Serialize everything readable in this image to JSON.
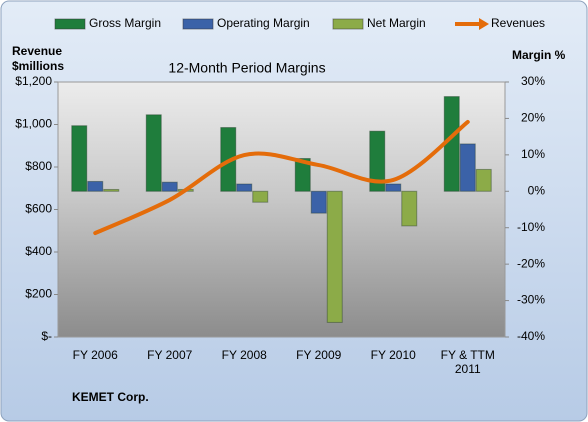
{
  "chart_data": {
    "type": "bar_line",
    "title": "12-Month Period Margins",
    "ylabel": [
      "Revenue",
      "$millions"
    ],
    "y2label": "Margin %",
    "footer": "KEMET Corp.",
    "categories": [
      "FY 2006",
      "FY 2007",
      "FY 2008",
      "FY 2009",
      "FY 2010",
      "FY & TTM 2011"
    ],
    "series": [
      {
        "name": "Gross Margin",
        "color": "#1f7d3c",
        "type": "bar",
        "axis": "y2",
        "values": [
          18,
          21,
          17.5,
          9,
          16.5,
          26
        ]
      },
      {
        "name": "Operating Margin",
        "color": "#3b62a8",
        "type": "bar",
        "axis": "y2",
        "values": [
          2.7,
          2.5,
          2,
          -6,
          2,
          13
        ]
      },
      {
        "name": "Net Margin",
        "color": "#8cab48",
        "type": "bar",
        "axis": "y2",
        "values": [
          0.5,
          0.5,
          -3,
          -36,
          -9.5,
          6
        ]
      },
      {
        "name": "Revenues",
        "color": "#e46c0a",
        "type": "line",
        "axis": "y",
        "values": [
          489,
          645,
          856,
          809,
          739,
          1012
        ]
      }
    ],
    "ylim": [
      0,
      1200
    ],
    "yticks": [
      {
        "value": 0,
        "label": "$-"
      },
      {
        "value": 200,
        "label": "$200"
      },
      {
        "value": 400,
        "label": "$400"
      },
      {
        "value": 600,
        "label": "$600"
      },
      {
        "value": 800,
        "label": "$800"
      },
      {
        "value": 1000,
        "label": "$1,000"
      },
      {
        "value": 1200,
        "label": "$1,200"
      }
    ],
    "y2lim": [
      -40,
      30
    ],
    "y2ticks": [
      {
        "value": -40,
        "label": "-40%"
      },
      {
        "value": -30,
        "label": "-30%"
      },
      {
        "value": -20,
        "label": "-20%"
      },
      {
        "value": -10,
        "label": "-10%"
      },
      {
        "value": 0,
        "label": "0%"
      },
      {
        "value": 10,
        "label": "10%"
      },
      {
        "value": 20,
        "label": "20%"
      },
      {
        "value": 30,
        "label": "30%"
      }
    ],
    "legend": "top"
  }
}
